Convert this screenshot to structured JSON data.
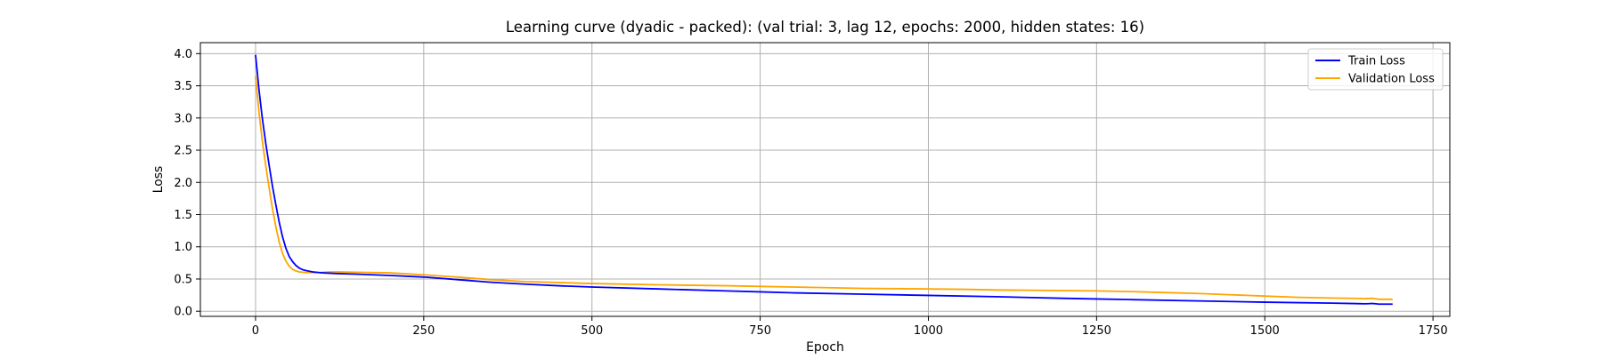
{
  "chart_data": {
    "type": "line",
    "title": "Learning curve (dyadic - packed): (val trial: 3, lag 12, epochs: 2000, hidden states: 16)",
    "xlabel": "Epoch",
    "ylabel": "Loss",
    "xlim": [
      -82,
      1775
    ],
    "ylim": [
      -0.08,
      4.17
    ],
    "x_ticks": [
      0,
      250,
      500,
      750,
      1000,
      1250,
      1500,
      1750
    ],
    "x_tick_labels": [
      "0",
      "250",
      "500",
      "750",
      "1000",
      "1250",
      "1500",
      "1750"
    ],
    "y_ticks": [
      0.0,
      0.5,
      1.0,
      1.5,
      2.0,
      2.5,
      3.0,
      3.5,
      4.0
    ],
    "y_tick_labels": [
      "0.0",
      "0.5",
      "1.0",
      "1.5",
      "2.0",
      "2.5",
      "3.0",
      "3.5",
      "4.0"
    ],
    "grid": true,
    "legend_position": "top-right",
    "series": [
      {
        "name": "Train Loss",
        "color": "#0000ff",
        "x": [
          0,
          5,
          10,
          15,
          20,
          25,
          30,
          35,
          40,
          45,
          50,
          55,
          60,
          65,
          70,
          75,
          80,
          85,
          90,
          95,
          100,
          110,
          120,
          150,
          200,
          250,
          300,
          350,
          400,
          450,
          500,
          600,
          700,
          750,
          800,
          900,
          1000,
          1100,
          1200,
          1250,
          1300,
          1400,
          1500,
          1600,
          1650,
          1660,
          1670,
          1690
        ],
        "y": [
          3.98,
          3.45,
          3.0,
          2.62,
          2.28,
          1.95,
          1.66,
          1.39,
          1.16,
          0.98,
          0.85,
          0.77,
          0.71,
          0.67,
          0.645,
          0.63,
          0.62,
          0.61,
          0.605,
          0.6,
          0.595,
          0.59,
          0.585,
          0.575,
          0.555,
          0.53,
          0.49,
          0.45,
          0.42,
          0.395,
          0.375,
          0.345,
          0.315,
          0.3,
          0.285,
          0.265,
          0.245,
          0.225,
          0.2,
          0.19,
          0.18,
          0.16,
          0.14,
          0.125,
          0.115,
          0.12,
          0.11,
          0.11
        ]
      },
      {
        "name": "Validation Loss",
        "color": "#ffa500",
        "x": [
          0,
          5,
          10,
          15,
          20,
          25,
          30,
          35,
          40,
          45,
          50,
          55,
          60,
          65,
          70,
          75,
          80,
          85,
          90,
          95,
          100,
          110,
          120,
          150,
          200,
          250,
          300,
          350,
          400,
          450,
          500,
          600,
          700,
          750,
          800,
          900,
          1000,
          1050,
          1100,
          1200,
          1250,
          1300,
          1350,
          1400,
          1450,
          1500,
          1550,
          1600,
          1650,
          1660,
          1670,
          1690
        ],
        "y": [
          3.65,
          3.1,
          2.65,
          2.27,
          1.93,
          1.6,
          1.32,
          1.08,
          0.9,
          0.78,
          0.7,
          0.65,
          0.625,
          0.61,
          0.605,
          0.6,
          0.6,
          0.6,
          0.6,
          0.6,
          0.605,
          0.61,
          0.61,
          0.605,
          0.595,
          0.565,
          0.53,
          0.49,
          0.46,
          0.445,
          0.43,
          0.41,
          0.395,
          0.385,
          0.375,
          0.355,
          0.345,
          0.34,
          0.33,
          0.32,
          0.315,
          0.305,
          0.29,
          0.275,
          0.255,
          0.235,
          0.215,
          0.205,
          0.195,
          0.2,
          0.185,
          0.185
        ]
      }
    ]
  }
}
